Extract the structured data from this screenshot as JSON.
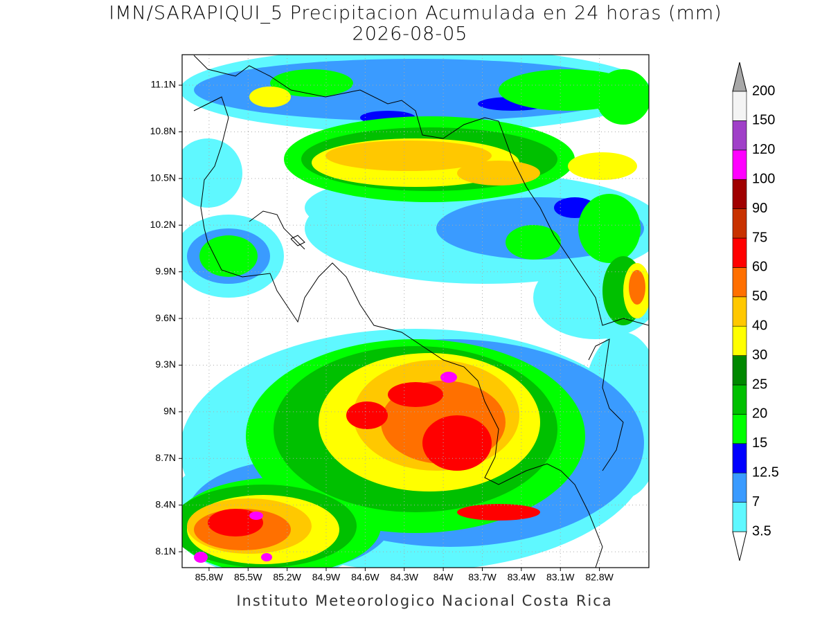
{
  "title": "IMN/SARAPIQUI_5 Precipitacion Acumulada en 24 horas (mm)",
  "date": "2026-08-05",
  "map": {
    "xlim": [
      -86.007,
      -82.42
    ],
    "ylim": [
      7.998,
      11.296
    ],
    "grid": true,
    "lat_ticks": [
      {
        "value": 11.1,
        "label": "11.1N"
      },
      {
        "value": 10.8,
        "label": "10.8N"
      },
      {
        "value": 10.5,
        "label": "10.5N"
      },
      {
        "value": 10.2,
        "label": "10.2N"
      },
      {
        "value": 9.9,
        "label": "9.9N"
      },
      {
        "value": 9.6,
        "label": "9.6N"
      },
      {
        "value": 9.3,
        "label": "9.3N"
      },
      {
        "value": 9,
        "label": "9N"
      },
      {
        "value": 8.7,
        "label": "8.7N"
      },
      {
        "value": 8.4,
        "label": "8.4N"
      },
      {
        "value": 8.1,
        "label": "8.1N"
      }
    ],
    "lon_ticks": [
      {
        "value": -85.8,
        "label": "85.8W"
      },
      {
        "value": -85.5,
        "label": "85.5W"
      },
      {
        "value": -85.2,
        "label": "85.2W"
      },
      {
        "value": -84.9,
        "label": "84.9W"
      },
      {
        "value": -84.6,
        "label": "84.6W"
      },
      {
        "value": -84.3,
        "label": "84.3W"
      },
      {
        "value": -84,
        "label": "84W"
      },
      {
        "value": -83.7,
        "label": "83.7W"
      },
      {
        "value": -83.4,
        "label": "83.4W"
      },
      {
        "value": -83.1,
        "label": "83.1W"
      },
      {
        "value": -82.8,
        "label": "82.8W"
      }
    ]
  },
  "colorbar": {
    "levels": [
      3.5,
      7,
      12.5,
      15,
      20,
      25,
      30,
      40,
      50,
      60,
      75,
      90,
      100,
      120,
      150,
      200
    ],
    "colors": [
      "#ffffff",
      "#5ff8ff",
      "#3a9bff",
      "#0000ff",
      "#00ff00",
      "#00c000",
      "#008800",
      "#ffff00",
      "#ffc800",
      "#ff7000",
      "#ff0000",
      "#c83200",
      "#a00000",
      "#ff00ff",
      "#a040c8",
      "#f4f4f4",
      "#a8a8a8"
    ]
  },
  "footer": "Instituto Meteorologico Nacional Costa Rica"
}
